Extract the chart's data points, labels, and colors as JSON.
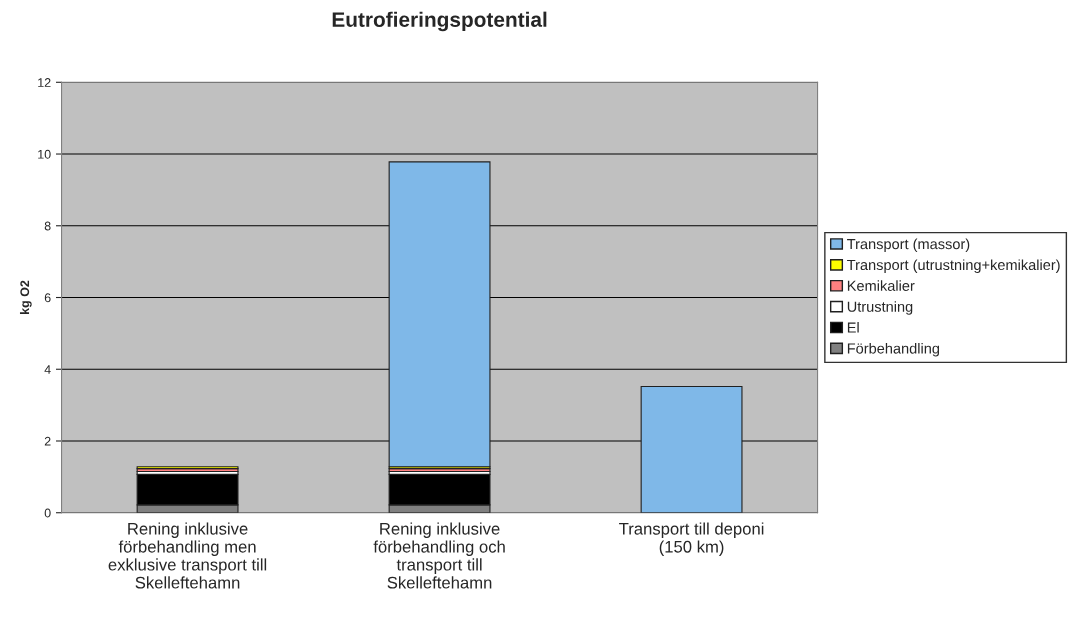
{
  "chart_data": {
    "type": "bar",
    "title": "Eutrofieringspotential",
    "ylabel": "kg O2",
    "categories": [
      "Rening inklusive\nförbehandling men\nexklusive transport till\nSkelleftehamn",
      "Rening inklusive\nförbehandling och\ntransport till\nSkelleftehamn",
      "Transport till deponi\n(150 km)"
    ],
    "stacked": true,
    "series": [
      {
        "name": "Förbehandling",
        "color": "#808080",
        "values": [
          0.22,
          0.22,
          null
        ]
      },
      {
        "name": "El",
        "color": "#000000",
        "values": [
          0.85,
          0.85,
          null
        ]
      },
      {
        "name": "Utrustning",
        "color": "#ffffff",
        "values": [
          0.08,
          0.08,
          null
        ]
      },
      {
        "name": "Kemikalier",
        "color": "#ff8080",
        "values": [
          0.08,
          0.08,
          null
        ]
      },
      {
        "name": "Transport (utrustning+kemikalier)",
        "color": "#ffff00",
        "values": [
          0.05,
          0.05,
          null
        ]
      },
      {
        "name": "Transport (massor)",
        "color": "#7fb8e8",
        "values": [
          null,
          8.5,
          3.52
        ]
      }
    ],
    "ylim": [
      0,
      12
    ],
    "yticks": [
      0,
      2,
      4,
      6,
      8,
      10,
      12
    ],
    "grid": "y",
    "legend": "right"
  }
}
